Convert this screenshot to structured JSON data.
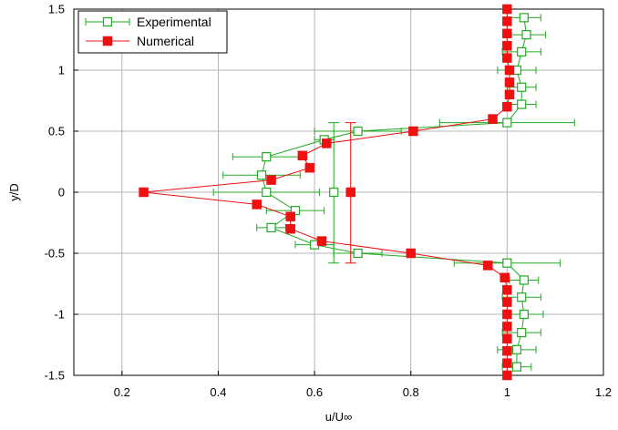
{
  "chart_data": {
    "type": "scatter",
    "title": "",
    "xlabel": "u/U∞",
    "ylabel": "y/D",
    "xlim": [
      0.1,
      1.2
    ],
    "ylim": [
      -1.5,
      1.5
    ],
    "xticks": [
      "0.2",
      "0.4",
      "0.6",
      "0.8",
      "1",
      "1.2"
    ],
    "yticks": [
      "-1.5",
      "-1",
      "-0.5",
      "0",
      "0.5",
      "1",
      "1.5"
    ],
    "grid": true,
    "legend_position": "top-left",
    "series": [
      {
        "name": "Experimental",
        "color": "#22aa22",
        "marker": "open-square",
        "points": [
          {
            "x": 1.02,
            "y": -1.43,
            "err": 0.03
          },
          {
            "x": 1.02,
            "y": -1.29,
            "err": 0.04
          },
          {
            "x": 1.03,
            "y": -1.15,
            "err": 0.04
          },
          {
            "x": 1.035,
            "y": -1.0,
            "err": 0.04
          },
          {
            "x": 1.03,
            "y": -0.86,
            "err": 0.04
          },
          {
            "x": 1.035,
            "y": -0.72,
            "err": 0.03
          },
          {
            "x": 1.0,
            "y": -0.58,
            "err": 0.11
          },
          {
            "x": 0.69,
            "y": -0.5,
            "err": 0.05
          },
          {
            "x": 0.6,
            "y": -0.43,
            "err": 0.04
          },
          {
            "x": 0.51,
            "y": -0.29,
            "err": 0.03
          },
          {
            "x": 0.56,
            "y": -0.15,
            "err": 0.06
          },
          {
            "x": 0.5,
            "y": 0.0,
            "err": 0.11
          },
          {
            "x": 0.64,
            "y": 0.0,
            "err": 0.0
          },
          {
            "x": 0.49,
            "y": 0.14,
            "err": 0.08
          },
          {
            "x": 0.5,
            "y": 0.29,
            "err": 0.07
          },
          {
            "x": 0.62,
            "y": 0.43,
            "err": 0.02
          },
          {
            "x": 0.69,
            "y": 0.5,
            "err": 0.09
          },
          {
            "x": 1.0,
            "y": 0.57,
            "err": 0.14
          },
          {
            "x": 1.03,
            "y": 0.72,
            "err": 0.03
          },
          {
            "x": 1.03,
            "y": 0.86,
            "err": 0.03
          },
          {
            "x": 1.02,
            "y": 1.0,
            "err": 0.04
          },
          {
            "x": 1.03,
            "y": 1.15,
            "err": 0.04
          },
          {
            "x": 1.04,
            "y": 1.29,
            "err": 0.04
          },
          {
            "x": 1.035,
            "y": 1.43,
            "err": 0.035
          }
        ],
        "vertical_error_bar": {
          "x": 0.64,
          "y_low": -0.58,
          "y_high": 0.57
        }
      },
      {
        "name": "Numerical",
        "color": "#ee1111",
        "marker": "filled-square",
        "points": [
          {
            "x": 1.0,
            "y": -1.5
          },
          {
            "x": 1.0,
            "y": -1.4
          },
          {
            "x": 1.0,
            "y": -1.3
          },
          {
            "x": 1.0,
            "y": -1.2
          },
          {
            "x": 1.0,
            "y": -1.1
          },
          {
            "x": 1.0,
            "y": -1.0
          },
          {
            "x": 1.0,
            "y": -0.9
          },
          {
            "x": 1.0,
            "y": -0.8
          },
          {
            "x": 0.995,
            "y": -0.7
          },
          {
            "x": 0.96,
            "y": -0.6
          },
          {
            "x": 0.8,
            "y": -0.5
          },
          {
            "x": 0.615,
            "y": -0.4
          },
          {
            "x": 0.55,
            "y": -0.3
          },
          {
            "x": 0.55,
            "y": -0.2
          },
          {
            "x": 0.48,
            "y": -0.1
          },
          {
            "x": 0.245,
            "y": 0.0
          },
          {
            "x": 0.675,
            "y": 0.0
          },
          {
            "x": 0.51,
            "y": 0.1
          },
          {
            "x": 0.59,
            "y": 0.2
          },
          {
            "x": 0.575,
            "y": 0.3
          },
          {
            "x": 0.625,
            "y": 0.4
          },
          {
            "x": 0.805,
            "y": 0.5
          },
          {
            "x": 0.97,
            "y": 0.6
          },
          {
            "x": 1.0,
            "y": 0.7
          },
          {
            "x": 1.005,
            "y": 0.8
          },
          {
            "x": 1.005,
            "y": 0.9
          },
          {
            "x": 1.005,
            "y": 1.0
          },
          {
            "x": 1.0,
            "y": 1.1
          },
          {
            "x": 1.0,
            "y": 1.2
          },
          {
            "x": 1.0,
            "y": 1.3
          },
          {
            "x": 1.0,
            "y": 1.4
          },
          {
            "x": 1.0,
            "y": 1.5
          }
        ],
        "line_points": [
          {
            "x": 1.0,
            "y": -1.5
          },
          {
            "x": 1.0,
            "y": -1.4
          },
          {
            "x": 1.0,
            "y": -1.3
          },
          {
            "x": 1.0,
            "y": -1.2
          },
          {
            "x": 1.0,
            "y": -1.1
          },
          {
            "x": 1.0,
            "y": -1.0
          },
          {
            "x": 1.0,
            "y": -0.9
          },
          {
            "x": 1.0,
            "y": -0.8
          },
          {
            "x": 0.995,
            "y": -0.7
          },
          {
            "x": 0.96,
            "y": -0.6
          },
          {
            "x": 0.8,
            "y": -0.5
          },
          {
            "x": 0.615,
            "y": -0.4
          },
          {
            "x": 0.55,
            "y": -0.3
          },
          {
            "x": 0.55,
            "y": -0.2
          },
          {
            "x": 0.48,
            "y": -0.1
          },
          {
            "x": 0.245,
            "y": 0.0
          },
          {
            "x": 0.51,
            "y": 0.1
          },
          {
            "x": 0.59,
            "y": 0.2
          },
          {
            "x": 0.575,
            "y": 0.3
          },
          {
            "x": 0.625,
            "y": 0.4
          },
          {
            "x": 0.805,
            "y": 0.5
          },
          {
            "x": 0.97,
            "y": 0.6
          },
          {
            "x": 1.0,
            "y": 0.7
          },
          {
            "x": 1.005,
            "y": 0.8
          },
          {
            "x": 1.005,
            "y": 0.9
          },
          {
            "x": 1.005,
            "y": 1.0
          },
          {
            "x": 1.0,
            "y": 1.1
          },
          {
            "x": 1.0,
            "y": 1.2
          },
          {
            "x": 1.0,
            "y": 1.3
          },
          {
            "x": 1.0,
            "y": 1.4
          },
          {
            "x": 1.0,
            "y": 1.5
          }
        ],
        "vertical_error_bar": {
          "x": 0.675,
          "y_low": -0.58,
          "y_high": 0.57
        }
      }
    ]
  }
}
